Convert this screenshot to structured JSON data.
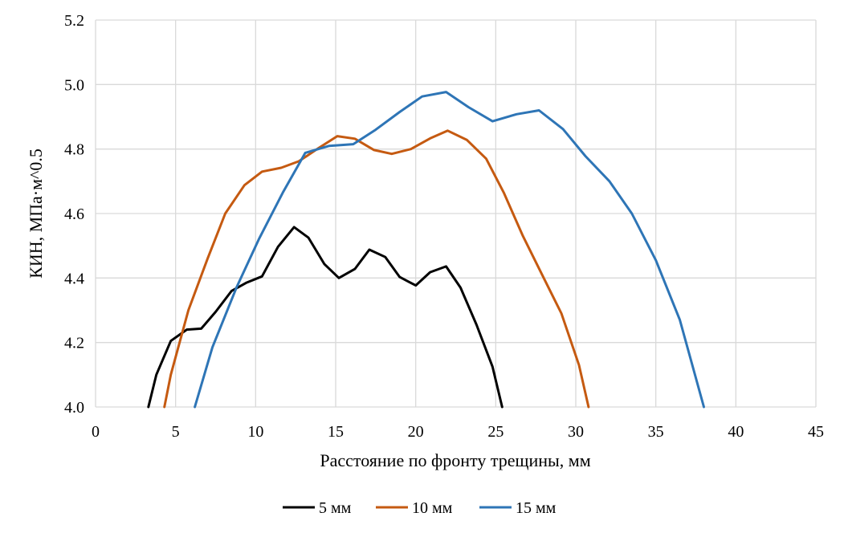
{
  "chart_data": {
    "type": "line",
    "title": "",
    "xlabel": "Расстояние по фронту трещины, мм",
    "ylabel": "КИН, МПа·м^0.5",
    "xlim": [
      0,
      45
    ],
    "ylim": [
      4.0,
      5.2
    ],
    "xticks": [
      0,
      5,
      10,
      15,
      20,
      25,
      30,
      35,
      40,
      45
    ],
    "yticks": [
      4.0,
      4.2,
      4.4,
      4.6,
      4.8,
      5.0,
      5.2
    ],
    "xtick_labels": [
      "0",
      "5",
      "10",
      "15",
      "20",
      "25",
      "30",
      "35",
      "40",
      "45"
    ],
    "ytick_labels": [
      "4.0",
      "4.2",
      "4.4",
      "4.6",
      "4.8",
      "5.0",
      "5.2"
    ],
    "grid": true,
    "legend_position": "bottom",
    "series": [
      {
        "name": "5 мм",
        "color": "#000000",
        "x": [
          3.3,
          3.8,
          4.7,
          5.7,
          6.6,
          7.5,
          8.5,
          9.4,
          10.4,
          11.4,
          12.4,
          13.3,
          14.3,
          15.2,
          16.2,
          17.1,
          18.1,
          19.0,
          20.0,
          20.9,
          21.9,
          22.8,
          23.8,
          24.8,
          25.4
        ],
        "y": [
          4.0,
          4.1,
          4.205,
          4.24,
          4.243,
          4.295,
          4.36,
          4.385,
          4.405,
          4.497,
          4.558,
          4.525,
          4.443,
          4.4,
          4.428,
          4.488,
          4.465,
          4.403,
          4.377,
          4.418,
          4.436,
          4.37,
          4.255,
          4.125,
          4.0
        ]
      },
      {
        "name": "10 мм",
        "color": "#c55a11",
        "x": [
          4.3,
          4.7,
          5.8,
          7.0,
          8.1,
          9.3,
          10.4,
          11.6,
          12.7,
          13.9,
          15.1,
          16.2,
          17.4,
          18.5,
          19.7,
          20.9,
          22.0,
          23.2,
          24.4,
          25.5,
          26.7,
          27.9,
          29.1,
          30.2,
          30.8
        ],
        "y": [
          4.0,
          4.1,
          4.3,
          4.46,
          4.6,
          4.688,
          4.73,
          4.742,
          4.762,
          4.802,
          4.84,
          4.832,
          4.797,
          4.785,
          4.8,
          4.833,
          4.857,
          4.828,
          4.77,
          4.665,
          4.53,
          4.41,
          4.29,
          4.13,
          4.0
        ]
      },
      {
        "name": "15 мм",
        "color": "#2e75b6",
        "x": [
          6.2,
          7.3,
          8.8,
          10.2,
          11.7,
          13.1,
          14.6,
          16.1,
          17.5,
          19.0,
          20.4,
          21.9,
          23.3,
          24.8,
          26.3,
          27.7,
          29.2,
          30.6,
          32.1,
          33.5,
          35.0,
          36.5,
          38.0
        ],
        "y": [
          4.0,
          4.185,
          4.37,
          4.52,
          4.665,
          4.788,
          4.81,
          4.815,
          4.86,
          4.915,
          4.963,
          4.977,
          4.93,
          4.886,
          4.908,
          4.92,
          4.862,
          4.778,
          4.7,
          4.6,
          4.455,
          4.27,
          4.0
        ]
      }
    ]
  }
}
